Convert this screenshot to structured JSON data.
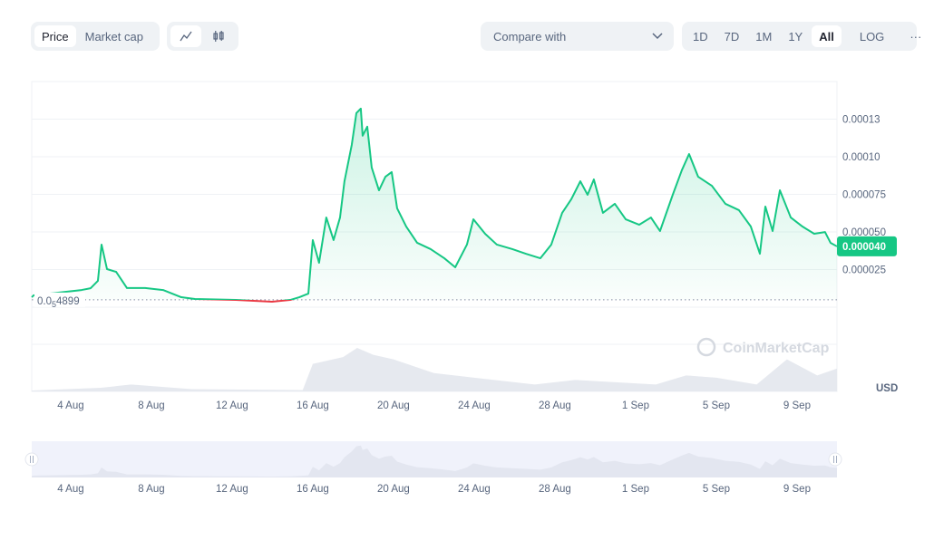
{
  "toolbar": {
    "type_tabs": [
      "Price",
      "Market cap"
    ],
    "active_type": "Price",
    "chart_style_icons": [
      "line-chart-icon",
      "candlestick-icon"
    ],
    "compare_label": "Compare with",
    "ranges": [
      "1D",
      "7D",
      "1M",
      "1Y",
      "All"
    ],
    "active_range": "All",
    "log_label": "LOG",
    "more_label": "···"
  },
  "colors": {
    "up": "#16c784",
    "down": "#ea3943",
    "grid": "#eff2f5",
    "text": "#58667e"
  },
  "chart_data": {
    "type": "line",
    "title": "",
    "xlabel": "",
    "ylabel": "USD",
    "x_unit": "days since 1 Aug",
    "xlim": [
      1.07,
      40.98
    ],
    "ylim": [
      0,
      0.000165
    ],
    "y_ticks": [
      {
        "value": 0.000125,
        "label": "0.00013"
      },
      {
        "value": 0.0001,
        "label": "0.00010"
      },
      {
        "value": 7.5e-05,
        "label": "0.000075"
      },
      {
        "value": 5e-05,
        "label": "0.000050"
      },
      {
        "value": 2.5e-05,
        "label": "0.000025"
      }
    ],
    "x_ticks": [
      {
        "value": 3,
        "label": "4 Aug"
      },
      {
        "value": 7,
        "label": "8 Aug"
      },
      {
        "value": 11,
        "label": "12 Aug"
      },
      {
        "value": 15,
        "label": "16 Aug"
      },
      {
        "value": 19,
        "label": "20 Aug"
      },
      {
        "value": 23,
        "label": "24 Aug"
      },
      {
        "value": 27,
        "label": "28 Aug"
      },
      {
        "value": 31,
        "label": "1 Sep"
      },
      {
        "value": 35,
        "label": "5 Sep"
      },
      {
        "value": 39,
        "label": "9 Sep"
      }
    ],
    "baseline": {
      "value": 4.899e-06,
      "label_prefix": "0.0",
      "label_sub": "5",
      "label_suffix": "4899"
    },
    "current_price_label": "0.000040",
    "currency_label": "USD",
    "watermark": "CoinMarketCap",
    "price_x": [
      1.07,
      1.16,
      3.54,
      3.99,
      4.35,
      4.53,
      4.8,
      5.25,
      5.79,
      6.69,
      7.58,
      8.48,
      9.16,
      11.18,
      12.98,
      13.88,
      14.33,
      14.78,
      15.0,
      15.31,
      15.67,
      16.03,
      16.35,
      16.57,
      16.93,
      17.16,
      17.38,
      17.47,
      17.7,
      17.92,
      18.28,
      18.6,
      18.91,
      19.18,
      19.63,
      20.17,
      20.84,
      21.52,
      22.06,
      22.64,
      22.96,
      23.54,
      24.12,
      24.89,
      25.56,
      26.28,
      26.82,
      27.36,
      27.81,
      28.26,
      28.62,
      28.93,
      29.38,
      29.97,
      30.51,
      31.18,
      31.76,
      32.21,
      32.84,
      33.29,
      33.65,
      34.1,
      34.78,
      35.45,
      36.12,
      36.71,
      37.16,
      37.43,
      37.79,
      38.15,
      38.69,
      39.27,
      39.85,
      40.39,
      40.66,
      40.98
    ],
    "price_y_e6": [
      6.6,
      7.8,
      11.4,
      12.6,
      17.5,
      41.6,
      25.3,
      23.5,
      12.7,
      12.7,
      11.4,
      6.6,
      5.4,
      4.8,
      3.6,
      4.8,
      6.6,
      9.0,
      44.6,
      29.5,
      59.6,
      44.6,
      59.6,
      83.7,
      107.8,
      129,
      132,
      114,
      120,
      92.8,
      77.7,
      86.7,
      89.8,
      65.7,
      53.6,
      42.8,
      38.6,
      32.5,
      26.5,
      41.6,
      58.4,
      48.8,
      41.6,
      38.6,
      35.5,
      32.5,
      41.6,
      62.7,
      71.7,
      83.7,
      74.7,
      84.9,
      62.7,
      68.7,
      58.4,
      54.8,
      59.6,
      50.6,
      74.7,
      91.0,
      101.8,
      86.7,
      80.7,
      68.7,
      64.5,
      53.6,
      35.5,
      66.9,
      50.6,
      77.7,
      59.6,
      53.6,
      48.8,
      49.9,
      42.8,
      40.4
    ],
    "volume_x": [
      1.07,
      4.5,
      6,
      9,
      14.5,
      15,
      16.5,
      17.2,
      18,
      19,
      21,
      23,
      26,
      28,
      30,
      32,
      33.5,
      35,
      37,
      38.5,
      40,
      40.98
    ],
    "volume_rel": [
      2,
      8,
      15,
      5,
      3,
      60,
      75,
      95,
      80,
      70,
      40,
      30,
      15,
      25,
      20,
      15,
      35,
      30,
      15,
      70,
      35,
      50
    ]
  }
}
